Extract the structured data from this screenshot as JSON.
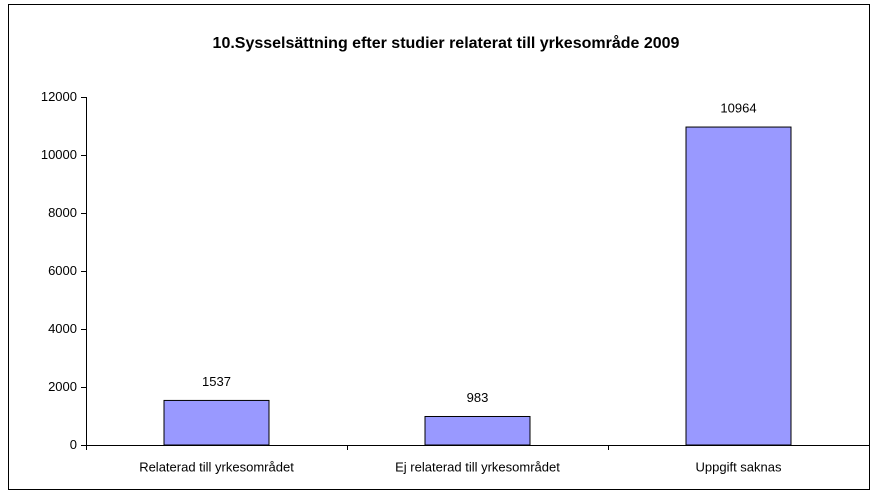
{
  "chart_data": {
    "type": "bar",
    "title": "10.Sysselsättning efter studier relaterat till yrkesområde 2009",
    "categories": [
      "Relaterad till yrkesområdet",
      "Ej relaterad till yrkesområdet",
      "Uppgift saknas"
    ],
    "values": [
      1537,
      983,
      10964
    ],
    "color": "#9999ff",
    "ylim": [
      0,
      12000
    ],
    "yticks": [
      0,
      2000,
      4000,
      6000,
      8000,
      10000,
      12000
    ],
    "grid": false
  }
}
